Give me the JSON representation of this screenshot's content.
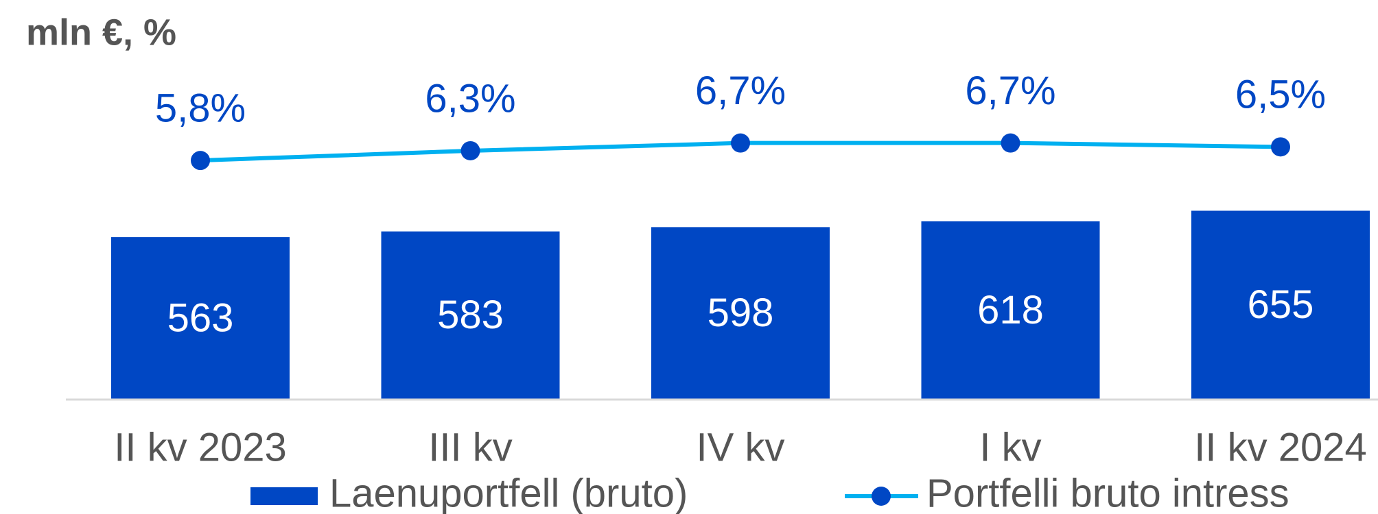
{
  "chart_data": {
    "type": "bar",
    "title": "mln €, %",
    "categories": [
      "II kv 2023",
      "III kv",
      "IV kv",
      "I kv",
      "II kv 2024"
    ],
    "series": [
      {
        "name": "Laenuportfell (bruto)",
        "type": "bar",
        "color": "#0047c4",
        "values": [
          563,
          583,
          598,
          618,
          655
        ]
      },
      {
        "name": "Portfelli bruto intress",
        "type": "line",
        "axis": "y2",
        "color": "#00b0f0",
        "marker_color": "#0047c4",
        "values": [
          5.8,
          6.3,
          6.7,
          6.7,
          6.5
        ],
        "value_labels": [
          "5,8%",
          "6,3%",
          "6,7%",
          "6,7%",
          "6,5%"
        ]
      }
    ],
    "ylim": [
      0,
      1100
    ],
    "y2lim": [
      -6.5,
      9.8
    ],
    "legend": "bottom"
  }
}
